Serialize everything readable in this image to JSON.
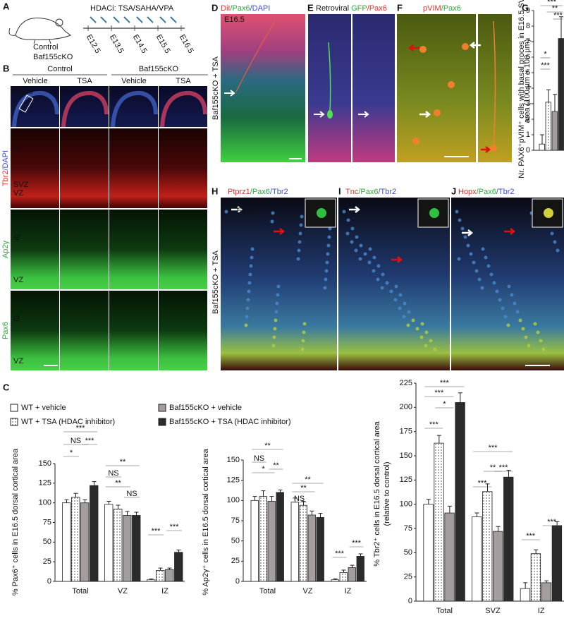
{
  "panel_labels": [
    "A",
    "B",
    "C",
    "D",
    "E",
    "F",
    "G",
    "H",
    "I",
    "J"
  ],
  "panel_a": {
    "treatment": "HDACi: TSA/SAHA/VPA",
    "groups": [
      "Control",
      "Baf155cKO"
    ],
    "days": [
      "E12.5",
      "E13.5",
      "E14.5",
      "E15.5",
      "E16.5"
    ]
  },
  "panel_b": {
    "genotypes": [
      "Control",
      "Baf155cKO"
    ],
    "treatments": [
      "Vehicle",
      "TSA",
      "Vehicle",
      "TSA"
    ],
    "stage": "E16.5",
    "rows": [
      {
        "stain": [
          {
            "text": "Tbr2",
            "color": "#e0302a"
          },
          {
            "text": "/DAPI",
            "color": "#3a4fd0"
          }
        ],
        "zones": [
          "IZ",
          "SVZ",
          "VZ"
        ]
      },
      {
        "stain": [
          {
            "text": "Ap2γ",
            "color": "#2fa83a"
          }
        ],
        "zones": [
          "IZ",
          "VZ"
        ]
      },
      {
        "stain": [
          {
            "text": "Pax6",
            "color": "#2fa83a"
          }
        ],
        "zones": [
          "IZ",
          "VZ"
        ]
      }
    ]
  },
  "panel_d": {
    "stain": [
      {
        "text": "DiI",
        "color": "#e0302a"
      },
      {
        "text": "/Pax6",
        "color": "#2fa83a"
      },
      {
        "text": "/DAPI",
        "color": "#3a4fd0"
      }
    ],
    "stage": "E16.5",
    "condition": "Baf155cKO + TSA"
  },
  "panel_e": {
    "stain": [
      {
        "text": "Retroviral ",
        "color": "#111111"
      },
      {
        "text": "GFP",
        "color": "#2fa83a"
      },
      {
        "text": "/Pax6",
        "color": "#e0302a"
      }
    ]
  },
  "panel_f": {
    "stain": [
      {
        "text": "pVIM",
        "color": "#e0302a"
      },
      {
        "text": "/Pax6",
        "color": "#2fa83a"
      }
    ]
  },
  "panels_hij": {
    "stage": "E16.5",
    "condition": "Baf155cKO + TSA",
    "stains": [
      [
        {
          "text": "Ptprz1",
          "color": "#e0302a"
        },
        {
          "text": "/Pax6",
          "color": "#2fa83a"
        },
        {
          "text": "/Tbr2",
          "color": "#3a4fd0"
        }
      ],
      [
        {
          "text": "Tnc",
          "color": "#e0302a"
        },
        {
          "text": "/Pax6",
          "color": "#2fa83a"
        },
        {
          "text": "/Tbr2",
          "color": "#3a4fd0"
        }
      ],
      [
        {
          "text": "Hopx",
          "color": "#e0302a"
        },
        {
          "text": "/Pax6",
          "color": "#2fa83a"
        },
        {
          "text": "/Tbr2",
          "color": "#3a4fd0"
        }
      ]
    ]
  },
  "legend": [
    {
      "name": "WT + vehicle",
      "color": "#ffffff",
      "pattern": "none"
    },
    {
      "name": "WT + TSA (HDAC inhibitor)",
      "color": "#ffffff",
      "pattern": "dots"
    },
    {
      "name": "Baf155cKO + vehicle",
      "color": "#a39d9d",
      "pattern": "none"
    },
    {
      "name": "Baf155cKO + TSA (HDAC inhibitor)",
      "color": "#2b2b2b",
      "pattern": "none"
    }
  ],
  "chart_data": [
    {
      "type": "bar",
      "y_label": [
        "% Pax6⁺ cells in E16.5 dorsal cortical area"
      ],
      "categories": [
        "Total",
        "VZ",
        "IZ"
      ],
      "ylim": [
        0,
        150
      ],
      "yticks": [
        0,
        25,
        50,
        75,
        100,
        125,
        150
      ],
      "series": [
        {
          "values": [
            100,
            98,
            2
          ],
          "errors": [
            4,
            4,
            1
          ]
        },
        {
          "values": [
            107,
            92,
            14
          ],
          "errors": [
            5,
            5,
            3
          ]
        },
        {
          "values": [
            100,
            84,
            15
          ],
          "errors": [
            4,
            5,
            2
          ]
        },
        {
          "values": [
            122,
            84,
            37
          ],
          "errors": [
            5,
            4,
            3
          ]
        }
      ],
      "annotations": [
        "***",
        "NS",
        "***",
        "*",
        "**",
        "NS",
        "**",
        "NS",
        "***",
        "***"
      ]
    },
    {
      "type": "bar",
      "y_label": [
        "% Ap2γ⁺ cells in E16.5 dorsal cortical area"
      ],
      "categories": [
        "Total",
        "VZ",
        "IZ"
      ],
      "ylim": [
        0,
        150
      ],
      "yticks": [
        0,
        25,
        50,
        75,
        100,
        125,
        150
      ],
      "series": [
        {
          "values": [
            100,
            98,
            2
          ],
          "errors": [
            5,
            5,
            1
          ]
        },
        {
          "values": [
            105,
            94,
            11
          ],
          "errors": [
            7,
            5,
            3
          ]
        },
        {
          "values": [
            99,
            82,
            17
          ],
          "errors": [
            6,
            5,
            3
          ]
        },
        {
          "values": [
            110,
            79,
            31
          ],
          "errors": [
            3,
            5,
            3
          ]
        }
      ],
      "annotations": [
        "**",
        "NS",
        "*",
        "**",
        "**",
        "NS",
        "**",
        "***",
        "***"
      ]
    },
    {
      "type": "bar",
      "y_label": [
        "% Tbr2⁺ cells in E16.5 dorsal cortical area",
        "(relative to control)"
      ],
      "categories": [
        "Total",
        "SVZ",
        "IZ"
      ],
      "ylim": [
        0,
        225
      ],
      "yticks": [
        0,
        25,
        50,
        75,
        100,
        125,
        150,
        175,
        200,
        225
      ],
      "series": [
        {
          "values": [
            100,
            87,
            13
          ],
          "errors": [
            5,
            4,
            6
          ]
        },
        {
          "values": [
            163,
            113,
            49
          ],
          "errors": [
            8,
            8,
            4
          ]
        },
        {
          "values": [
            91,
            72,
            19
          ],
          "errors": [
            7,
            5,
            2
          ]
        },
        {
          "values": [
            205,
            128,
            78
          ],
          "errors": [
            10,
            7,
            4
          ]
        }
      ],
      "annotations": [
        "***",
        "***",
        "*",
        "***",
        "***",
        "**",
        "***",
        "***",
        "***",
        "***"
      ]
    },
    {
      "type": "bar",
      "y_label": [
        "Nr. PAX6⁺pVIM⁺ cells with basal proces in E16.5 SVZ/IZ",
        "area (100 µm × 100 µm)"
      ],
      "categories": [
        null
      ],
      "ylim": [
        0,
        9
      ],
      "yticks": [
        0,
        1,
        2,
        3,
        4,
        5,
        6,
        7,
        8,
        9
      ],
      "series": [
        {
          "values": [
            0.4
          ],
          "errors": [
            0.6
          ]
        },
        {
          "values": [
            3.1
          ],
          "errors": [
            0.8
          ]
        },
        {
          "values": [
            2.5
          ],
          "errors": [
            1.1
          ]
        },
        {
          "values": [
            7.2
          ],
          "errors": [
            1.4
          ]
        }
      ],
      "annotations": [
        "***",
        "**",
        "***",
        "*",
        "***"
      ]
    }
  ]
}
